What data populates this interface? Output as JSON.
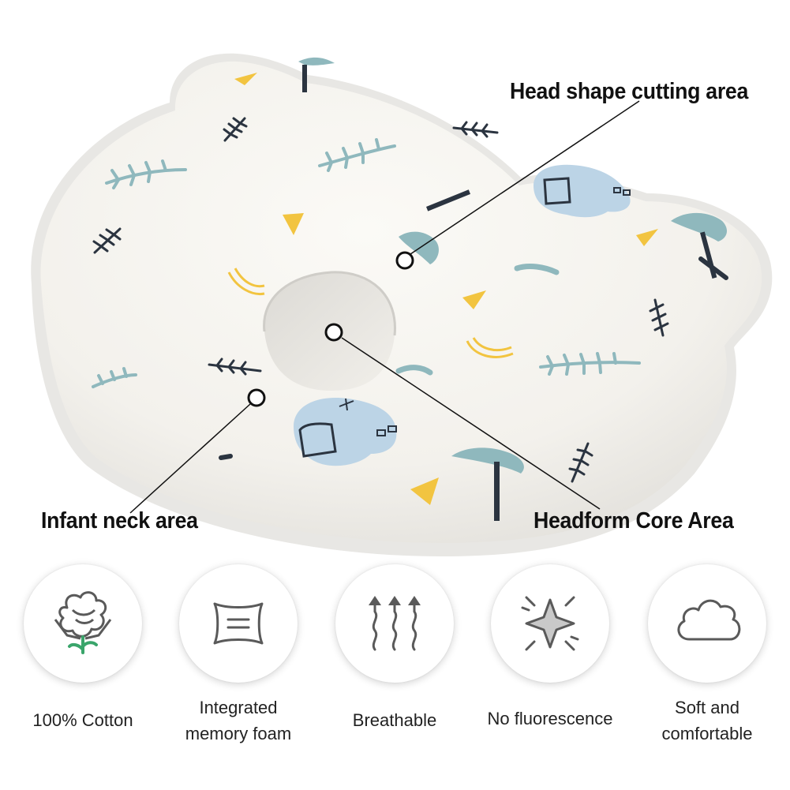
{
  "callouts": {
    "head_shape": "Head shape cutting area",
    "infant_neck": "Infant neck area",
    "headform_core": "Headform Core Area"
  },
  "features": [
    {
      "label_lines": [
        "100% Cotton"
      ],
      "icon": "cotton-icon"
    },
    {
      "label_lines": [
        "Integrated",
        "memory foam"
      ],
      "icon": "memory-foam-icon"
    },
    {
      "label_lines": [
        "Breathable"
      ],
      "icon": "breathable-arrows-icon"
    },
    {
      "label_lines": [
        "No fluorescence"
      ],
      "icon": "sparkle-star-icon"
    },
    {
      "label_lines": [
        "Soft and",
        "comfortable"
      ],
      "icon": "cloud-icon"
    }
  ],
  "colors": {
    "pillow": "#f7f5f0",
    "piping": "#ffffff",
    "leaf": "#8fb8bd",
    "dark_leaf": "#2b3440",
    "yellow": "#f2c440",
    "elephant": "#bcd4e6",
    "icon_gray": "#5a5a5a",
    "cotton_green": "#3aa56b"
  }
}
